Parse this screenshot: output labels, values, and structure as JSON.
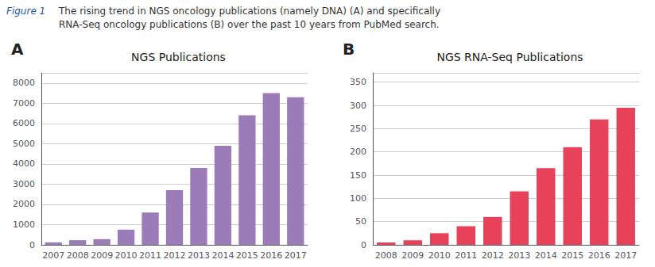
{
  "title": "Figure 1",
  "subtitle": [
    "The rising trend in NGS oncology publications (namely DNA) (A) and specifically",
    "RNA-Seq oncology publications (B) over the past 10 years from PubMed search."
  ],
  "chart_data": [
    {
      "type": "bar",
      "title": "NGS Publications",
      "annotations": [
        "A"
      ],
      "categories": [
        "2007",
        "2008",
        "2009",
        "2010",
        "2011",
        "2012",
        "2013",
        "2014",
        "2015",
        "2016",
        "2017"
      ],
      "values": [
        120,
        230,
        280,
        750,
        1600,
        2700,
        3800,
        4900,
        6400,
        7500,
        7300
      ],
      "color": "#9b7bb8",
      "ylim": [
        0,
        8500
      ],
      "yticks": [
        0,
        1000,
        2000,
        3000,
        4000,
        5000,
        6000,
        7000,
        8000
      ],
      "grid": true
    },
    {
      "type": "bar",
      "title": "NGS RNA-Seq Publications",
      "annotations": [
        "B"
      ],
      "categories": [
        "2008",
        "2009",
        "2010",
        "2011",
        "2012",
        "2013",
        "2014",
        "2015",
        "2016",
        "2017"
      ],
      "values": [
        5,
        10,
        25,
        40,
        60,
        115,
        165,
        210,
        270,
        295
      ],
      "color": "#e8415a",
      "ylim": [
        0,
        370
      ],
      "yticks": [
        0,
        50,
        100,
        150,
        200,
        250,
        300,
        350
      ],
      "grid": true
    }
  ]
}
